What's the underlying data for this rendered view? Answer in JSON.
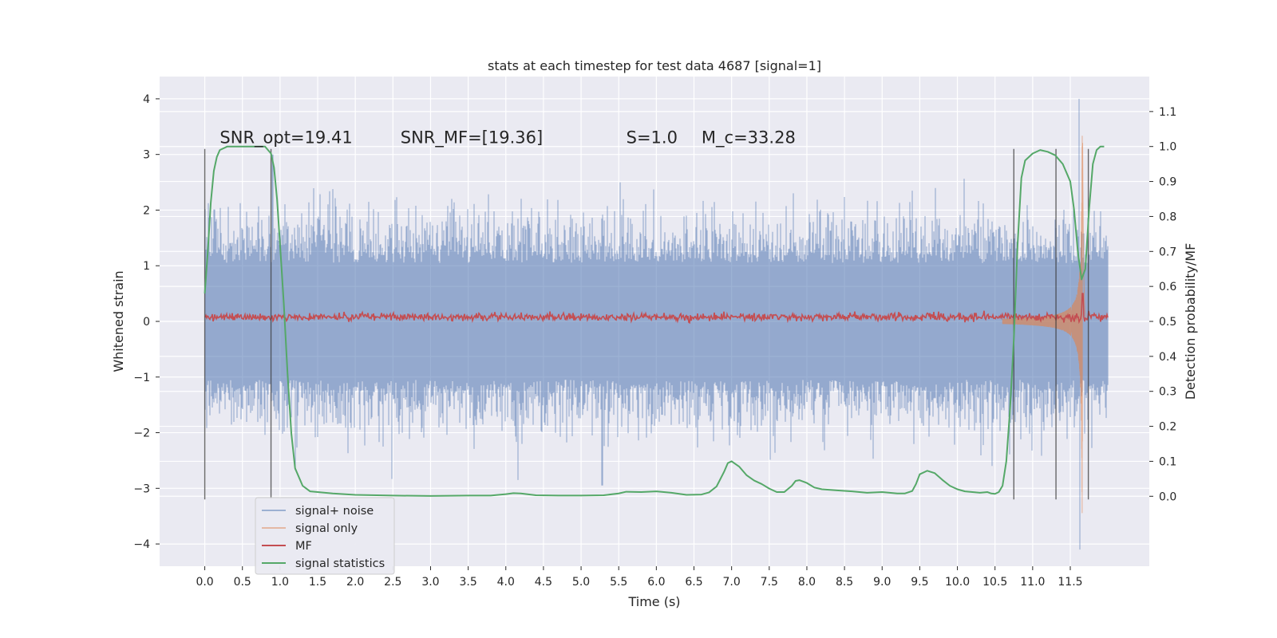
{
  "chart_data": {
    "type": "line",
    "title": "stats at each timestep for test data 4687 [signal=1]",
    "xlabel": "Time (s)",
    "ylabel": "Whitened strain",
    "ylabel_right": "Detection probability/MF",
    "xlim": [
      -0.6,
      12.55
    ],
    "ylim": [
      -4.4,
      4.4
    ],
    "ylim_right": [
      -0.2,
      1.2
    ],
    "x_ticks": [
      0.0,
      0.5,
      1.0,
      1.5,
      2.0,
      2.5,
      3.0,
      3.5,
      4.0,
      4.5,
      5.0,
      5.5,
      6.0,
      6.5,
      7.0,
      7.5,
      8.0,
      8.5,
      9.0,
      9.5,
      10.0,
      10.5,
      11.0,
      11.5
    ],
    "x_tick_labels": [
      "0.0",
      "0.5",
      "1.0",
      "1.5",
      "2.0",
      "2.5",
      "3.0",
      "3.5",
      "4.0",
      "4.5",
      "5.0",
      "5.5",
      "6.0",
      "6.5",
      "7.0",
      "7.5",
      "8.0",
      "8.5",
      "9.0",
      "9.5",
      "10.0",
      "10.5",
      "11.0",
      "11.5"
    ],
    "y_ticks": [
      -4,
      -3,
      -2,
      -1,
      0,
      1,
      2,
      3,
      4
    ],
    "y_tick_labels": [
      "−4",
      "−3",
      "−2",
      "−1",
      "0",
      "1",
      "2",
      "3",
      "4"
    ],
    "y_right_ticks": [
      0.0,
      0.1,
      0.2,
      0.3,
      0.4,
      0.5,
      0.6,
      0.7,
      0.8,
      0.9,
      1.0,
      1.1
    ],
    "y_right_tick_labels": [
      "0.0",
      "0.1",
      "0.2",
      "0.3",
      "0.4",
      "0.5",
      "0.6",
      "0.7",
      "0.8",
      "0.9",
      "1.0",
      "1.1"
    ],
    "grid": true,
    "legend_placement": "lower-left",
    "annotations": [
      {
        "id": "snr-opt",
        "text": "SNR_opt=19.41",
        "x": 0.2,
        "y": 3.2
      },
      {
        "id": "snr-mf",
        "text": "SNR_MF=[19.36]",
        "x": 2.6,
        "y": 3.2
      },
      {
        "id": "s-value",
        "text": "S=1.0",
        "x": 5.6,
        "y": 3.2
      },
      {
        "id": "mc-value",
        "text": "M_c=33.28",
        "x": 6.6,
        "y": 3.2
      }
    ],
    "vertical_lines": [
      0.0,
      0.88,
      10.75,
      11.31,
      11.74
    ],
    "vertical_lines_range": [
      -3.2,
      3.1
    ],
    "series": [
      {
        "name": "signal+ noise",
        "color": "#4c72b0",
        "axis": "left",
        "x_range": [
          0.0,
          12.0
        ],
        "amplitude_band": [
          -1.8,
          1.8
        ],
        "extremes": [
          [
            0.9,
            3.0
          ],
          [
            4.16,
            -2.85
          ],
          [
            5.28,
            -2.95
          ],
          [
            5.52,
            2.5
          ],
          [
            11.62,
            4.0
          ],
          [
            11.63,
            -4.1
          ]
        ]
      },
      {
        "name": "signal only",
        "color": "#dd8452",
        "axis": "left",
        "x_range": [
          10.6,
          11.72
        ],
        "peak": 3.6,
        "trough": -3.3
      },
      {
        "name": "MF",
        "color": "#c44e52",
        "axis": "left",
        "x_range": [
          0.0,
          12.0
        ],
        "mean": 0.08,
        "spike": [
          11.66,
          0.5
        ]
      },
      {
        "name": "signal statistics",
        "color": "#55a868",
        "axis": "right",
        "x": [
          0.0,
          0.04,
          0.08,
          0.12,
          0.16,
          0.2,
          0.3,
          0.4,
          0.5,
          0.6,
          0.7,
          0.8,
          0.84,
          0.88,
          0.92,
          0.96,
          1.0,
          1.05,
          1.1,
          1.15,
          1.2,
          1.3,
          1.4,
          1.5,
          1.7,
          2.0,
          2.5,
          3.0,
          3.5,
          3.8,
          4.0,
          4.1,
          4.2,
          4.4,
          4.7,
          5.0,
          5.3,
          5.5,
          5.6,
          5.8,
          6.0,
          6.2,
          6.4,
          6.6,
          6.7,
          6.8,
          6.9,
          6.95,
          7.0,
          7.1,
          7.2,
          7.3,
          7.4,
          7.5,
          7.6,
          7.7,
          7.8,
          7.85,
          7.9,
          8.0,
          8.1,
          8.2,
          8.4,
          8.6,
          8.8,
          9.0,
          9.2,
          9.3,
          9.4,
          9.45,
          9.5,
          9.6,
          9.7,
          9.8,
          9.9,
          10.0,
          10.1,
          10.2,
          10.3,
          10.4,
          10.45,
          10.5,
          10.55,
          10.6,
          10.65,
          10.7,
          10.75,
          10.8,
          10.85,
          10.9,
          11.0,
          11.1,
          11.2,
          11.3,
          11.4,
          11.5,
          11.55,
          11.6,
          11.65,
          11.7,
          11.75,
          11.8,
          11.85,
          11.9,
          11.95
        ],
        "values": [
          0.58,
          0.7,
          0.84,
          0.93,
          0.97,
          0.99,
          1.0,
          1.0,
          1.0,
          1.0,
          1.0,
          1.0,
          0.99,
          0.98,
          0.94,
          0.85,
          0.72,
          0.55,
          0.35,
          0.18,
          0.08,
          0.03,
          0.014,
          0.012,
          0.008,
          0.004,
          0.002,
          0.001,
          0.002,
          0.002,
          0.006,
          0.009,
          0.008,
          0.003,
          0.002,
          0.002,
          0.003,
          0.008,
          0.013,
          0.012,
          0.014,
          0.01,
          0.004,
          0.005,
          0.011,
          0.028,
          0.07,
          0.095,
          0.1,
          0.085,
          0.06,
          0.045,
          0.035,
          0.022,
          0.012,
          0.012,
          0.03,
          0.044,
          0.046,
          0.038,
          0.025,
          0.02,
          0.017,
          0.014,
          0.01,
          0.012,
          0.008,
          0.008,
          0.015,
          0.035,
          0.063,
          0.073,
          0.066,
          0.047,
          0.03,
          0.02,
          0.014,
          0.012,
          0.01,
          0.012,
          0.008,
          0.007,
          0.012,
          0.03,
          0.1,
          0.25,
          0.45,
          0.72,
          0.91,
          0.96,
          0.98,
          0.99,
          0.985,
          0.975,
          0.95,
          0.9,
          0.82,
          0.7,
          0.62,
          0.65,
          0.82,
          0.95,
          0.99,
          1.0,
          1.0
        ]
      }
    ]
  }
}
